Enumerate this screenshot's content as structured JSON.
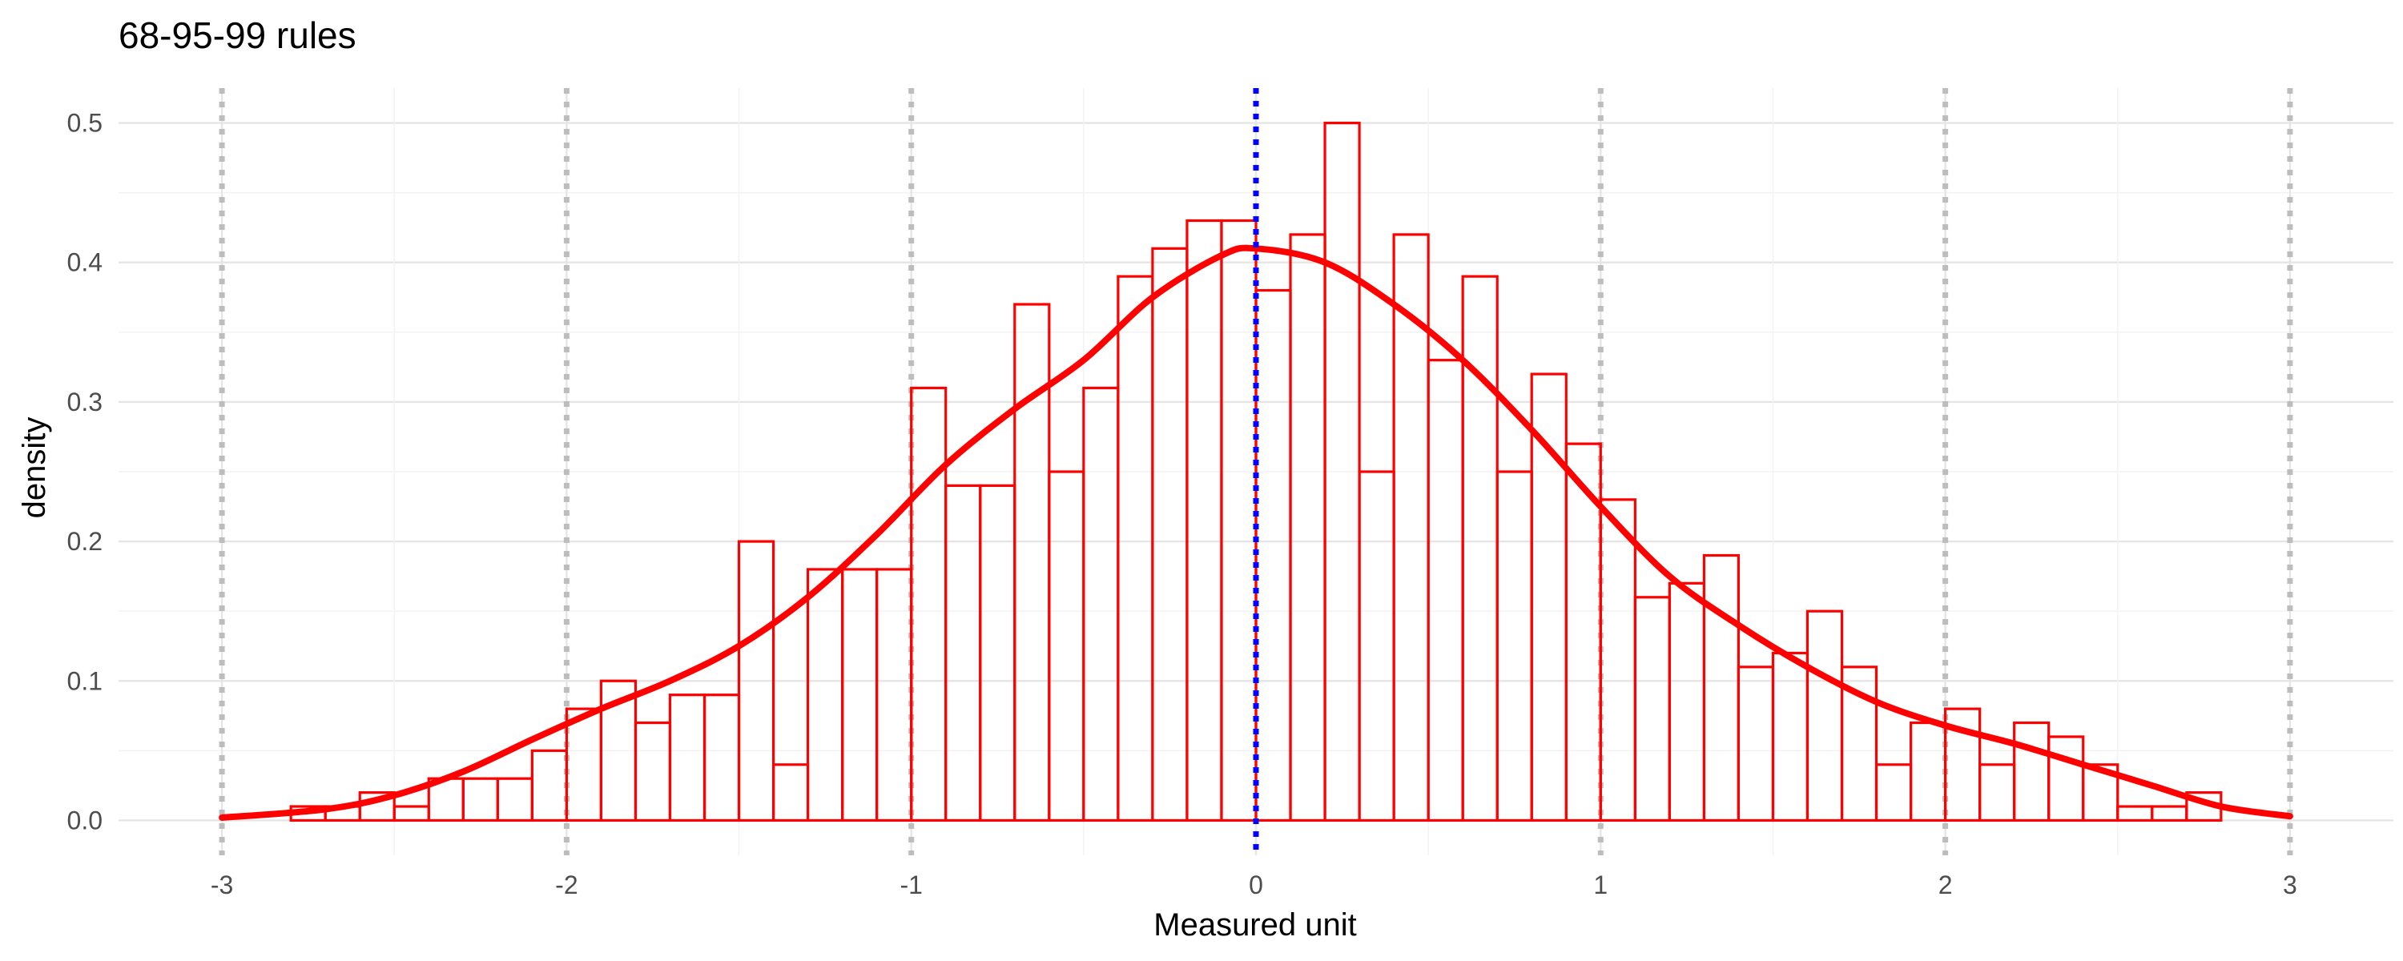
{
  "chart_data": {
    "type": "histogram",
    "title": "68-95-99 rules",
    "xlabel": "Measured unit",
    "ylabel": "density",
    "xlim": [
      -3.3,
      3.3
    ],
    "ylim": [
      -0.025,
      0.525
    ],
    "x_ticks": [
      -3,
      -2,
      -1,
      0,
      1,
      2,
      3
    ],
    "x_tick_labels": [
      "-3",
      "-2",
      "-1",
      "0",
      "1",
      "2",
      "3"
    ],
    "y_ticks": [
      0.0,
      0.1,
      0.2,
      0.3,
      0.4,
      0.5
    ],
    "y_tick_labels": [
      "0.0",
      "0.1",
      "0.2",
      "0.3",
      "0.4",
      "0.5"
    ],
    "grid": true,
    "bin_width": 0.1,
    "bins_start": -3.0,
    "bar_color": "#ff0000",
    "bar_values": [
      0.0,
      0.0,
      0.01,
      0.01,
      0.02,
      0.01,
      0.03,
      0.03,
      0.03,
      0.05,
      0.08,
      0.1,
      0.07,
      0.09,
      0.09,
      0.2,
      0.04,
      0.18,
      0.18,
      0.18,
      0.31,
      0.24,
      0.24,
      0.37,
      0.25,
      0.31,
      0.39,
      0.41,
      0.43,
      0.43,
      0.38,
      0.42,
      0.5,
      0.25,
      0.42,
      0.33,
      0.39,
      0.25,
      0.32,
      0.27,
      0.23,
      0.16,
      0.17,
      0.19,
      0.11,
      0.12,
      0.15,
      0.11,
      0.04,
      0.07,
      0.08,
      0.04,
      0.07,
      0.06,
      0.04,
      0.01,
      0.01,
      0.02,
      0.0,
      0.0
    ],
    "curve": {
      "color": "#ff0000",
      "points": [
        [
          -3.0,
          0.002
        ],
        [
          -2.7,
          0.008
        ],
        [
          -2.5,
          0.018
        ],
        [
          -2.3,
          0.035
        ],
        [
          -2.1,
          0.058
        ],
        [
          -1.9,
          0.08
        ],
        [
          -1.7,
          0.1
        ],
        [
          -1.5,
          0.125
        ],
        [
          -1.3,
          0.16
        ],
        [
          -1.1,
          0.205
        ],
        [
          -0.9,
          0.255
        ],
        [
          -0.7,
          0.295
        ],
        [
          -0.5,
          0.33
        ],
        [
          -0.3,
          0.375
        ],
        [
          -0.1,
          0.405
        ],
        [
          0.0,
          0.41
        ],
        [
          0.2,
          0.4
        ],
        [
          0.4,
          0.37
        ],
        [
          0.6,
          0.33
        ],
        [
          0.8,
          0.28
        ],
        [
          1.0,
          0.225
        ],
        [
          1.2,
          0.175
        ],
        [
          1.4,
          0.14
        ],
        [
          1.6,
          0.11
        ],
        [
          1.8,
          0.085
        ],
        [
          2.0,
          0.068
        ],
        [
          2.2,
          0.055
        ],
        [
          2.4,
          0.04
        ],
        [
          2.6,
          0.025
        ],
        [
          2.8,
          0.01
        ],
        [
          3.0,
          0.003
        ]
      ]
    },
    "vlines": {
      "sd_lines": [
        -3,
        -2,
        -1,
        1,
        2,
        3
      ],
      "sd_color": "#bdbdbd",
      "mean_line": 0,
      "mean_color": "#0000ff"
    }
  }
}
